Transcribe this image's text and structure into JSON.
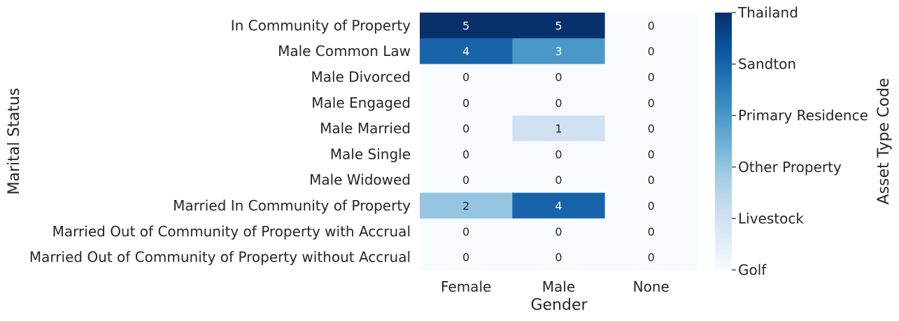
{
  "chart_data": {
    "type": "heatmap",
    "xlabel": "Gender",
    "ylabel": "Marital Status",
    "x_categories": [
      "Female",
      "Male",
      "None"
    ],
    "y_categories": [
      "In Community of Property",
      "Male Common Law",
      "Male Divorced",
      "Male Engaged",
      "Male Married",
      "Male Single",
      "Male Widowed",
      "Married In Community of Property",
      "Married Out of Community of Property with Accrual",
      "Married Out of Community of Property without Accrual"
    ],
    "values": [
      [
        5,
        5,
        0
      ],
      [
        4,
        3,
        0
      ],
      [
        0,
        0,
        0
      ],
      [
        0,
        0,
        0
      ],
      [
        0,
        1,
        0
      ],
      [
        0,
        0,
        0
      ],
      [
        0,
        0,
        0
      ],
      [
        2,
        4,
        0
      ],
      [
        0,
        0,
        0
      ],
      [
        0,
        0,
        0
      ]
    ],
    "vmin": 0,
    "vmax": 5,
    "colormap": "Blues",
    "colorbar": {
      "label": "Asset Type Code",
      "ticks": [
        {
          "value": 0,
          "label": "Golf"
        },
        {
          "value": 1,
          "label": "Livestock"
        },
        {
          "value": 2,
          "label": "Other Property"
        },
        {
          "value": 3,
          "label": "Primary Residence"
        },
        {
          "value": 4,
          "label": "Sandton"
        },
        {
          "value": 5,
          "label": "Thailand"
        }
      ]
    }
  }
}
